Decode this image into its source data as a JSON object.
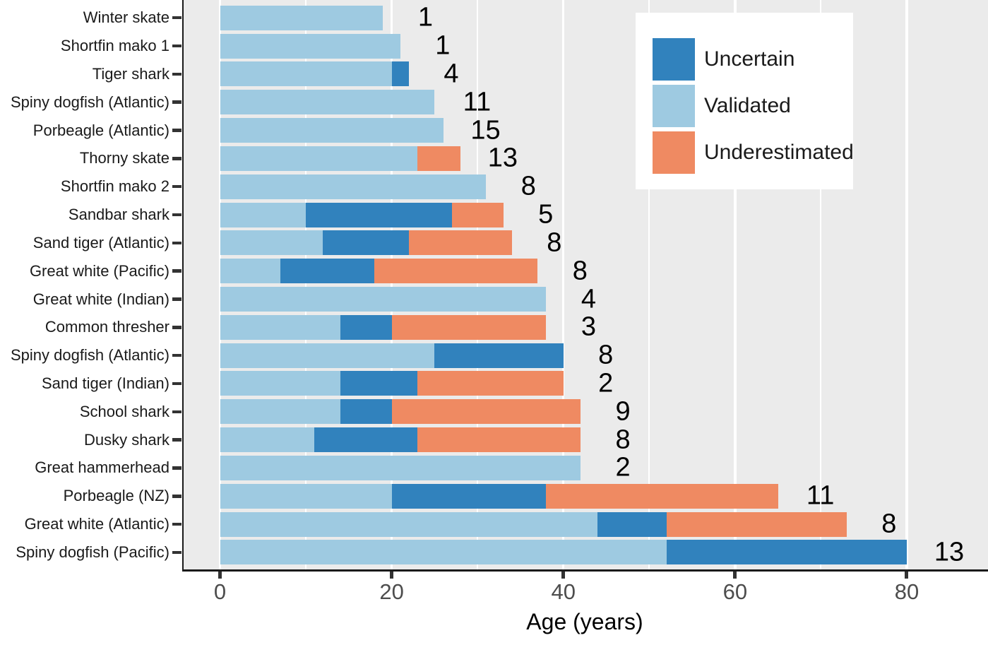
{
  "colors": {
    "uncertain": "#3182BD",
    "validated": "#9ECAE1",
    "underestimated": "#EF8A62",
    "panel_background": "#EBEBEB",
    "gridline": "#FFFFFF",
    "axis_line": "#1a1a1a",
    "tick_mark": "#333333",
    "tick_label": "#4d4d4d",
    "text": "#000000"
  },
  "legend": {
    "items": [
      {
        "label": "Uncertain",
        "color": "#3182BD"
      },
      {
        "label": "Validated",
        "color": "#9ECAE1"
      },
      {
        "label": "Underestimated",
        "color": "#EF8A62"
      }
    ]
  },
  "chart_data": {
    "type": "bar",
    "orientation": "horizontal",
    "stacked": true,
    "title": "",
    "xlabel": "Age (years)",
    "ylabel": "",
    "xlim": [
      0,
      89
    ],
    "x_ticks": [
      0,
      20,
      40,
      60,
      80
    ],
    "x_major_gridlines": [
      0,
      20,
      40,
      60,
      80
    ],
    "x_minor_gridlines": [
      10,
      30,
      50,
      70
    ],
    "grid": true,
    "legend_position": "top-right-inside",
    "legend_order": [
      "Uncertain",
      "Validated",
      "Underestimated"
    ],
    "stack_order": [
      "Validated",
      "Uncertain",
      "Underestimated"
    ],
    "categories": [
      "Winter skate",
      "Shortfin mako 1",
      "Tiger shark",
      "Spiny dogfish (Atlantic)",
      "Porbeagle (Atlantic)",
      "Thorny skate",
      "Shortfin mako 2",
      "Sandbar shark",
      "Sand tiger (Atlantic)",
      "Great white (Pacific)",
      "Great white (Indian)",
      "Common thresher",
      "Spiny dogfish (Atlantic)",
      "Sand tiger (Indian)",
      "School shark",
      "Dusky shark",
      "Great hammerhead",
      "Porbeagle (NZ)",
      "Great white (Atlantic)",
      "Spiny dogfish (Pacific)"
    ],
    "series": [
      {
        "name": "Validated",
        "color": "#9ECAE1",
        "values": [
          19,
          21,
          20,
          25,
          26,
          23,
          31,
          10,
          12,
          7,
          38,
          14,
          25,
          14,
          14,
          11,
          42,
          20,
          44,
          52
        ]
      },
      {
        "name": "Uncertain",
        "color": "#3182BD",
        "values": [
          0,
          0,
          2,
          0,
          0,
          0,
          0,
          17,
          10,
          11,
          0,
          6,
          15,
          9,
          6,
          12,
          0,
          18,
          8,
          28
        ]
      },
      {
        "name": "Underestimated",
        "color": "#EF8A62",
        "values": [
          0,
          0,
          0,
          0,
          0,
          5,
          0,
          6,
          12,
          19,
          0,
          18,
          0,
          17,
          22,
          19,
          0,
          27,
          21,
          0
        ]
      }
    ],
    "bar_totals": [
      19,
      21,
      22,
      25,
      26,
      28,
      31,
      33,
      34,
      37,
      38,
      38,
      40,
      40,
      42,
      42,
      42,
      65,
      73,
      80
    ],
    "bar_end_labels": [
      "1",
      "1",
      "4",
      "11",
      "15",
      "13",
      "8",
      "5",
      "8",
      "8",
      "4",
      "3",
      "8",
      "2",
      "9",
      "8",
      "2",
      "11",
      "8",
      "13"
    ]
  }
}
